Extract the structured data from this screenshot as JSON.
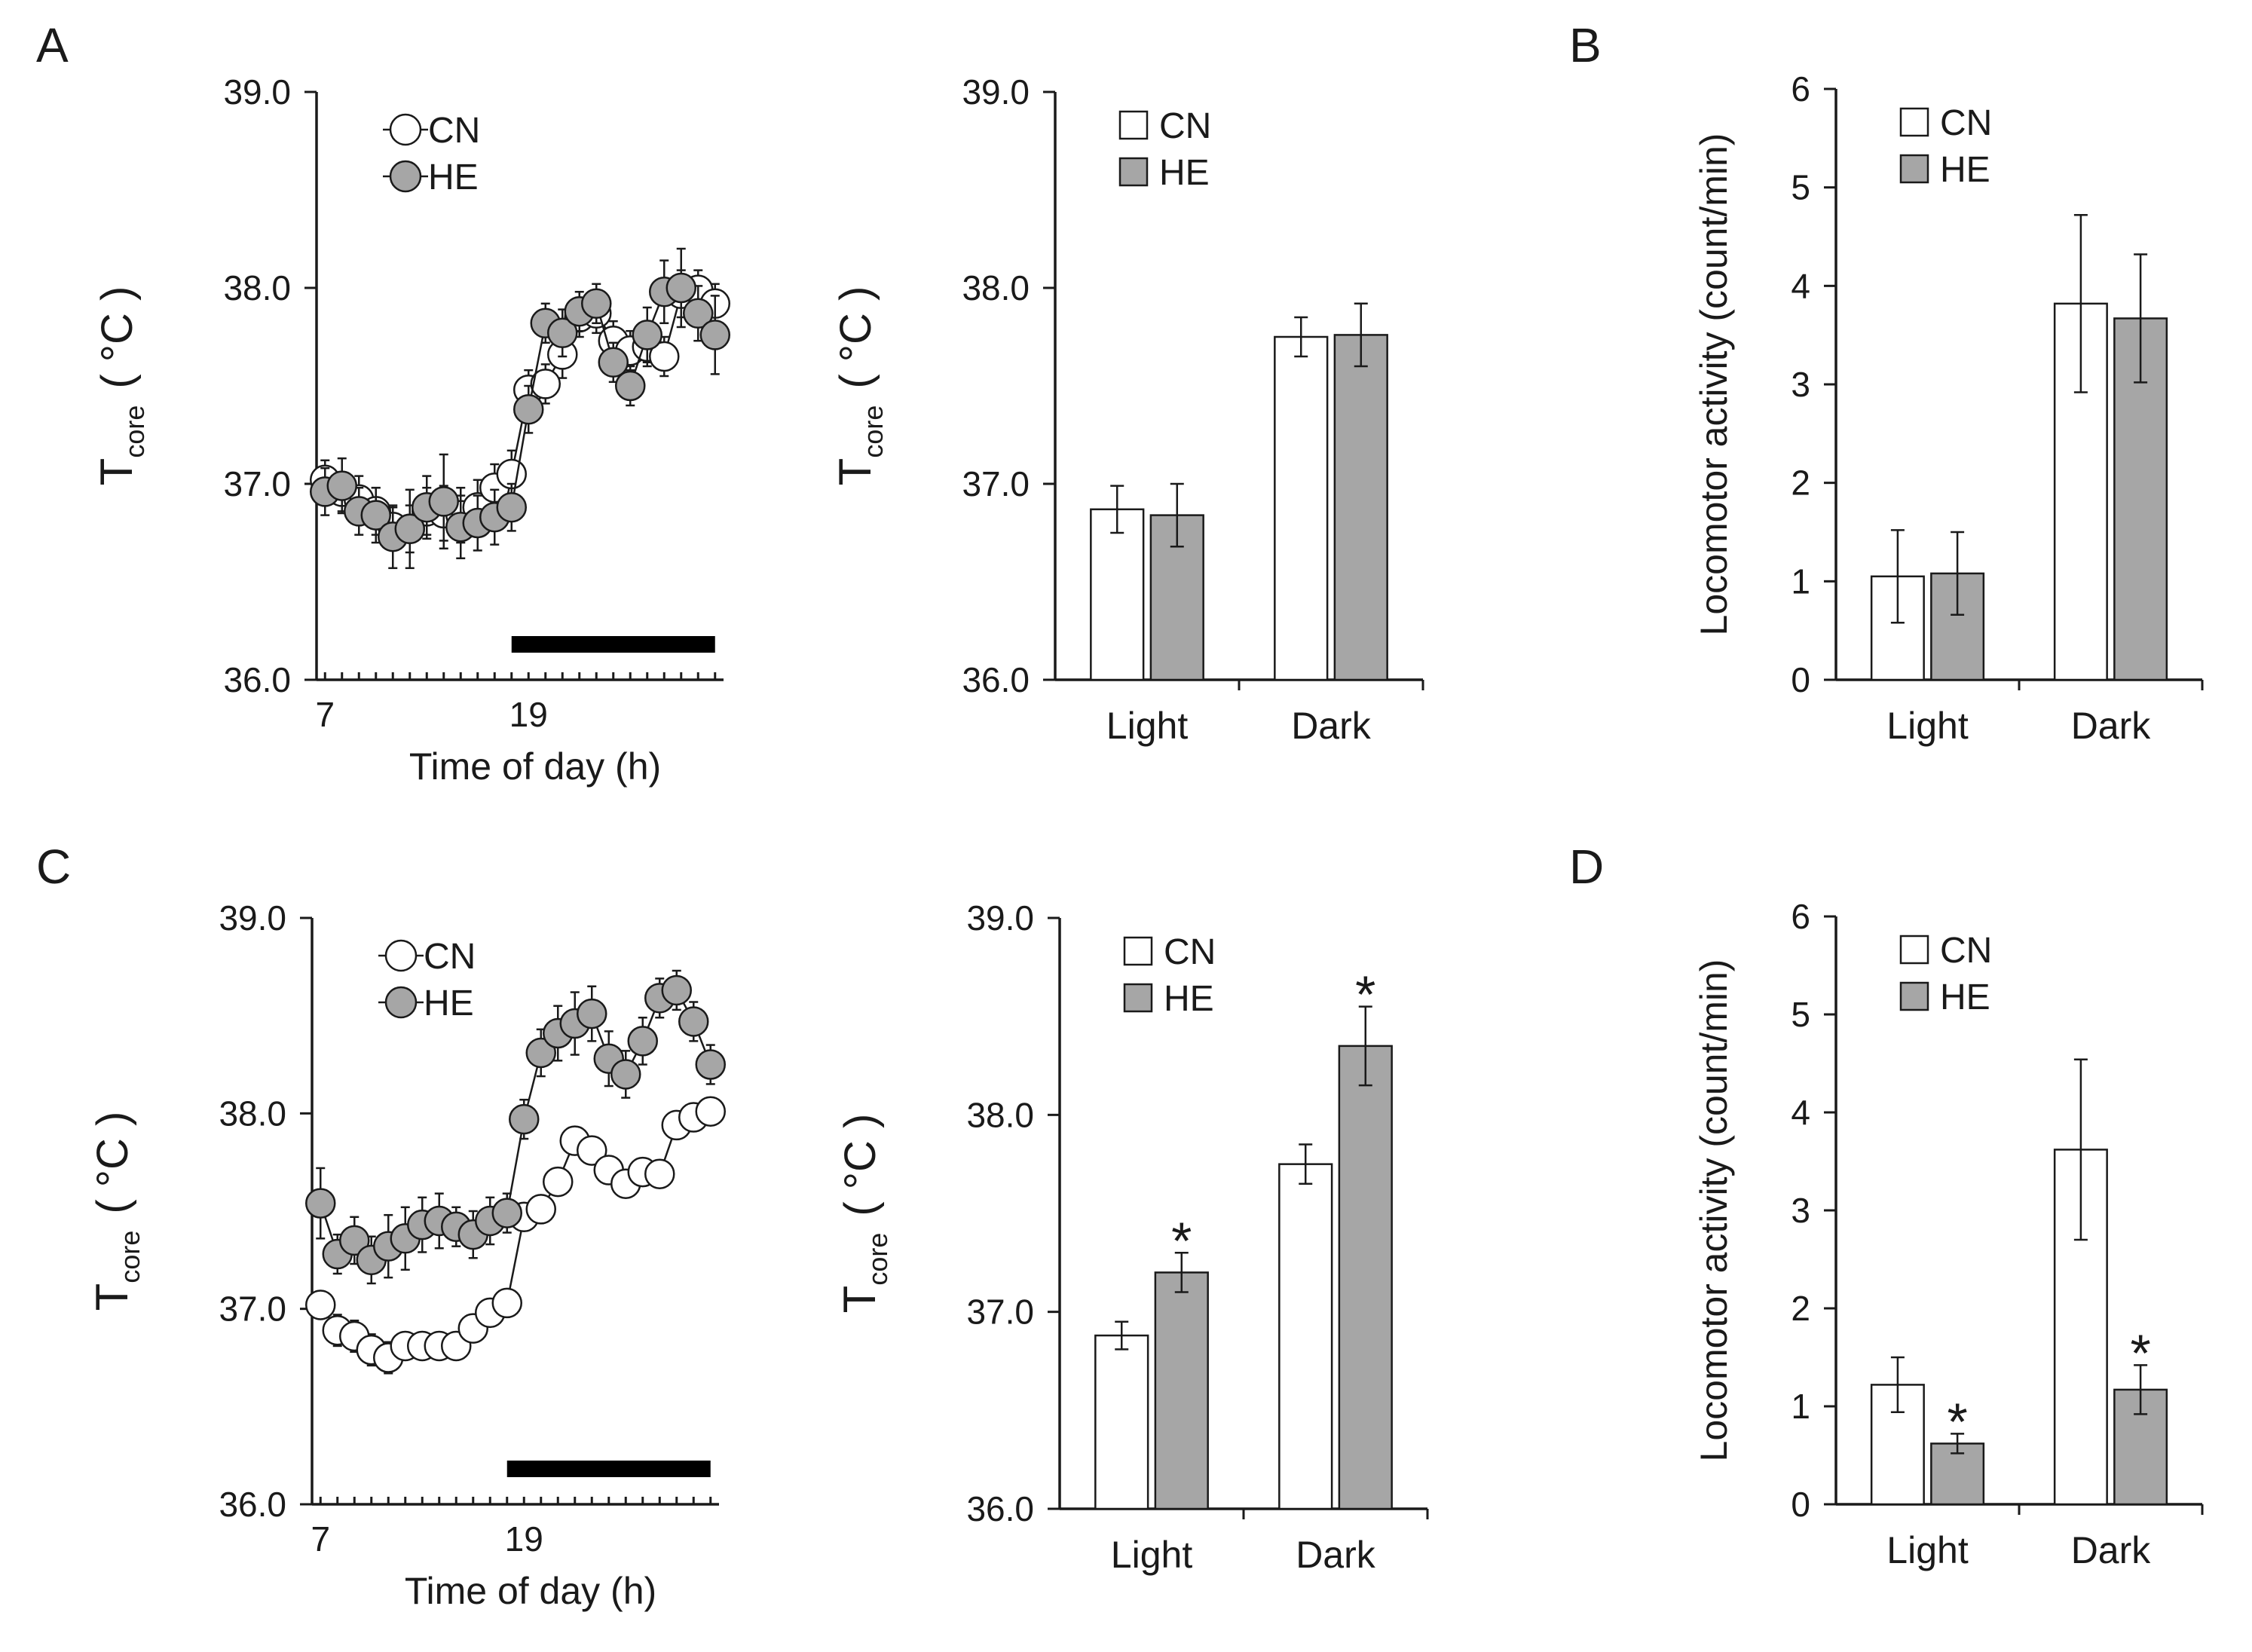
{
  "colors": {
    "cn": "#ffffff",
    "he": "#a6a6a6",
    "stroke": "#1a1a1a",
    "dark_phase": "#000000"
  },
  "panel_letters": [
    "A",
    "B",
    "C",
    "D"
  ],
  "chart_data": [
    {
      "id": "A-left",
      "type": "line",
      "xlabel": "Time of day (h)",
      "ylabel": {
        "main": "T",
        "sub": "core",
        "unit": "( °C )"
      },
      "ylim": [
        36.0,
        39.0
      ],
      "yticks": [
        "36.0",
        "37.0",
        "38.0",
        "39.0"
      ],
      "xticks": [
        "7",
        "19"
      ],
      "x": [
        7,
        8,
        9,
        10,
        11,
        12,
        13,
        14,
        15,
        16,
        17,
        18,
        19,
        20,
        21,
        22,
        23,
        24,
        25,
        26,
        27,
        28,
        29,
        30
      ],
      "dark_phase": [
        18,
        30
      ],
      "legend": [
        "CN",
        "HE"
      ],
      "series": [
        {
          "name": "CN",
          "values": [
            37.02,
            36.96,
            36.92,
            36.86,
            36.78,
            36.77,
            36.86,
            36.85,
            36.84,
            36.88,
            36.98,
            37.05,
            37.48,
            37.51,
            37.66,
            37.85,
            37.87,
            37.73,
            37.68,
            37.7,
            37.65,
            37.97,
            37.99,
            37.92
          ],
          "err": [
            0.1,
            0.1,
            0.12,
            0.12,
            0.1,
            0.12,
            0.12,
            0.14,
            0.14,
            0.14,
            0.12,
            0.12,
            0.1,
            0.1,
            0.12,
            0.1,
            0.1,
            0.1,
            0.1,
            0.1,
            0.1,
            0.12,
            0.1,
            0.1
          ]
        },
        {
          "name": "HE",
          "values": [
            36.96,
            36.99,
            36.86,
            36.84,
            36.73,
            36.77,
            36.88,
            36.91,
            36.78,
            36.8,
            36.83,
            36.88,
            37.38,
            37.82,
            37.77,
            37.88,
            37.92,
            37.62,
            37.5,
            37.76,
            37.98,
            38.0,
            37.87,
            37.76
          ],
          "err": [
            0.12,
            0.14,
            0.12,
            0.14,
            0.16,
            0.2,
            0.16,
            0.24,
            0.16,
            0.14,
            0.14,
            0.12,
            0.12,
            0.1,
            0.12,
            0.1,
            0.1,
            0.1,
            0.1,
            0.14,
            0.16,
            0.2,
            0.14,
            0.2
          ]
        }
      ]
    },
    {
      "id": "A-right",
      "type": "bar",
      "ylabel": {
        "main": "T",
        "sub": "core",
        "unit": "( °C )"
      },
      "ylim": [
        36.0,
        39.0
      ],
      "yticks": [
        "36.0",
        "37.0",
        "38.0",
        "39.0"
      ],
      "categories": [
        "Light",
        "Dark"
      ],
      "legend": [
        "CN",
        "HE"
      ],
      "series": [
        {
          "name": "CN",
          "values": [
            36.87,
            37.75
          ],
          "err": [
            0.12,
            0.1
          ]
        },
        {
          "name": "HE",
          "values": [
            36.84,
            37.76
          ],
          "err": [
            0.16,
            0.16
          ]
        }
      ],
      "significance": []
    },
    {
      "id": "B",
      "type": "bar",
      "ylabel": {
        "main": "Locomotor activity (count/min)"
      },
      "ylim": [
        0,
        6
      ],
      "yticks": [
        "0",
        "1",
        "2",
        "3",
        "4",
        "5",
        "6"
      ],
      "categories": [
        "Light",
        "Dark"
      ],
      "legend": [
        "CN",
        "HE"
      ],
      "series": [
        {
          "name": "CN",
          "values": [
            1.05,
            3.82
          ],
          "err": [
            0.47,
            0.9
          ]
        },
        {
          "name": "HE",
          "values": [
            1.08,
            3.67
          ],
          "err": [
            0.42,
            0.65
          ]
        }
      ],
      "significance": []
    },
    {
      "id": "C-left",
      "type": "line",
      "xlabel": "Time of day (h)",
      "ylabel": {
        "main": "T",
        "sub": "core",
        "unit": "( °C )"
      },
      "ylim": [
        36.0,
        39.0
      ],
      "yticks": [
        "36.0",
        "37.0",
        "38.0",
        "39.0"
      ],
      "xticks": [
        "7",
        "19"
      ],
      "x": [
        7,
        8,
        9,
        10,
        11,
        12,
        13,
        14,
        15,
        16,
        17,
        18,
        19,
        20,
        21,
        22,
        23,
        24,
        25,
        26,
        27,
        28,
        29,
        30
      ],
      "dark_phase": [
        18,
        30
      ],
      "legend": [
        "CN",
        "HE"
      ],
      "series": [
        {
          "name": "CN",
          "values": [
            37.02,
            36.89,
            36.86,
            36.79,
            36.75,
            36.81,
            36.81,
            36.81,
            36.81,
            36.9,
            36.98,
            37.03,
            37.47,
            37.51,
            37.65,
            37.86,
            37.81,
            37.71,
            37.64,
            37.7,
            37.69,
            37.94,
            37.98,
            38.01
          ],
          "err": [
            0.07,
            0.08,
            0.08,
            0.08,
            0.08,
            0.07,
            0.07,
            0.07,
            0.07,
            0.07,
            0.07,
            0.07,
            0.07,
            0.07,
            0.07,
            0.07,
            0.07,
            0.07,
            0.07,
            0.07,
            0.07,
            0.07,
            0.07,
            0.07
          ]
        },
        {
          "name": "HE",
          "values": [
            37.54,
            37.28,
            37.35,
            37.25,
            37.32,
            37.36,
            37.43,
            37.45,
            37.42,
            37.38,
            37.45,
            37.49,
            37.97,
            38.31,
            38.41,
            38.46,
            38.51,
            38.28,
            38.2,
            38.37,
            38.59,
            38.63,
            38.47,
            38.25
          ],
          "err": [
            0.18,
            0.1,
            0.12,
            0.12,
            0.16,
            0.16,
            0.14,
            0.14,
            0.1,
            0.12,
            0.12,
            0.1,
            0.1,
            0.12,
            0.14,
            0.16,
            0.14,
            0.14,
            0.12,
            0.12,
            0.1,
            0.1,
            0.1,
            0.1
          ]
        }
      ]
    },
    {
      "id": "C-right",
      "type": "bar",
      "ylabel": {
        "main": "T",
        "sub": "core",
        "unit": "( °C )"
      },
      "ylim": [
        36.0,
        39.0
      ],
      "yticks": [
        "36.0",
        "37.0",
        "38.0",
        "39.0"
      ],
      "categories": [
        "Light",
        "Dark"
      ],
      "legend": [
        "CN",
        "HE"
      ],
      "series": [
        {
          "name": "CN",
          "values": [
            36.88,
            37.75
          ],
          "err": [
            0.07,
            0.1
          ]
        },
        {
          "name": "HE",
          "values": [
            37.2,
            38.35
          ],
          "err": [
            0.1,
            0.2
          ]
        }
      ],
      "significance": [
        {
          "series": 1,
          "category": 0,
          "mark": "*"
        },
        {
          "series": 1,
          "category": 1,
          "mark": "*"
        }
      ]
    },
    {
      "id": "D",
      "type": "bar",
      "ylabel": {
        "main": "Locomotor activity (count/min)"
      },
      "ylim": [
        0,
        6
      ],
      "yticks": [
        "0",
        "1",
        "2",
        "3",
        "4",
        "5",
        "6"
      ],
      "categories": [
        "Light",
        "Dark"
      ],
      "legend": [
        "CN",
        "HE"
      ],
      "series": [
        {
          "name": "CN",
          "values": [
            1.22,
            3.62
          ],
          "err": [
            0.28,
            0.92
          ]
        },
        {
          "name": "HE",
          "values": [
            0.62,
            1.17
          ],
          "err": [
            0.1,
            0.25
          ]
        }
      ],
      "significance": [
        {
          "series": 1,
          "category": 0,
          "mark": "*"
        },
        {
          "series": 1,
          "category": 1,
          "mark": "*"
        }
      ]
    }
  ]
}
